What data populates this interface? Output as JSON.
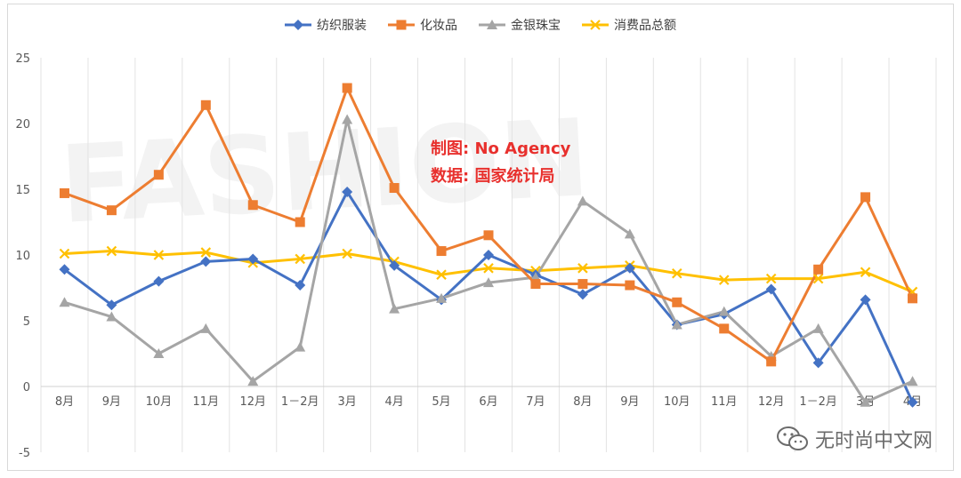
{
  "chart_data": {
    "type": "line",
    "categories": [
      "8月",
      "9月",
      "10月",
      "11月",
      "12月",
      "1－2月",
      "3月",
      "4月",
      "5月",
      "6月",
      "7月",
      "8月",
      "9月",
      "10月",
      "11月",
      "12月",
      "1－2月",
      "3月",
      "4月"
    ],
    "ylim": [
      -5,
      25
    ],
    "yticks": [
      "-5",
      "0",
      "5",
      "10",
      "15",
      "20",
      "25"
    ],
    "grid": "vertical",
    "legend_position": "top",
    "series": [
      {
        "name": "纺织服装",
        "color": "#4472c4",
        "marker": "diamond",
        "values": [
          8.9,
          6.2,
          8.0,
          9.5,
          9.7,
          7.7,
          14.8,
          9.2,
          6.6,
          10.0,
          8.5,
          7.0,
          9.0,
          4.7,
          5.5,
          7.4,
          1.8,
          6.6,
          -1.2
        ]
      },
      {
        "name": "化妆品",
        "color": "#ed7d31",
        "marker": "square",
        "values": [
          14.7,
          13.4,
          16.1,
          21.4,
          13.8,
          12.5,
          22.7,
          15.1,
          10.3,
          11.5,
          7.8,
          7.8,
          7.7,
          6.4,
          4.4,
          1.9,
          8.9,
          14.4,
          6.7
        ]
      },
      {
        "name": "金银珠宝",
        "color": "#a5a5a5",
        "marker": "triangle",
        "values": [
          6.4,
          5.3,
          2.5,
          4.4,
          0.4,
          3.0,
          20.3,
          5.9,
          6.7,
          7.9,
          8.3,
          14.1,
          11.6,
          4.7,
          5.7,
          2.3,
          4.4,
          -1.2,
          0.4
        ]
      },
      {
        "name": "消费品总额",
        "color": "#ffc000",
        "marker": "x",
        "values": [
          10.1,
          10.3,
          10.0,
          10.2,
          9.4,
          9.7,
          10.1,
          9.5,
          8.5,
          9.0,
          8.8,
          9.0,
          9.2,
          8.6,
          8.1,
          8.2,
          8.2,
          8.7,
          7.2
        ]
      }
    ]
  },
  "overlay": {
    "line1": "制图: No Agency",
    "line2": "数据: 国家统计局"
  },
  "background_mark": {
    "text": "FASHION"
  },
  "watermark": {
    "text": "无时尚中文网",
    "icon": "wechat-icon"
  }
}
